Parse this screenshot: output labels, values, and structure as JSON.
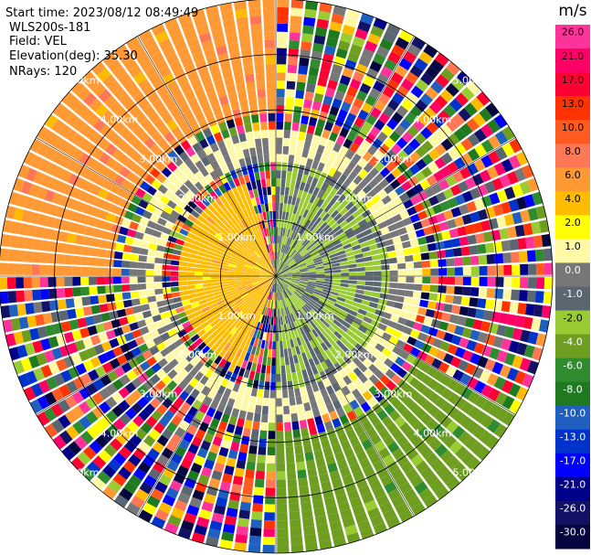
{
  "header": {
    "start_time": "Start time: 2023/08/12 08:49:49",
    "site": "WLS200s-181",
    "field": "Field: VEL",
    "elevation": "Elevation(deg): 35.30",
    "nrays": "NRays: 120"
  },
  "range_rings": {
    "labels": [
      "1.00km",
      "2.00km",
      "3.00km",
      "4.00km",
      "5.00km"
    ],
    "values_km": [
      1,
      2,
      3,
      4,
      5
    ]
  },
  "colorbar": {
    "unit": "m/s",
    "ticks": [
      "26.0",
      "21.0",
      "17.0",
      "13.0",
      "10.0",
      "8.0",
      "6.0",
      "4.0",
      "2.0",
      "1.0",
      "0.0",
      "-1.0",
      "-2.0",
      "-4.0",
      "-6.0",
      "-8.0",
      "-10.0",
      "-13.0",
      "-17.0",
      "-21.0",
      "-26.0",
      "-30.0"
    ],
    "colors": [
      "#ff3399",
      "#ff0066",
      "#ff0033",
      "#ff3300",
      "#ff5a1f",
      "#ff7755",
      "#ff9933",
      "#ffbb00",
      "#ffff00",
      "#fff9a6",
      "#777777",
      "#5a6670",
      "#99cc33",
      "#6e9e20",
      "#2e8b2e",
      "#1f7a1f",
      "#1f5fc0",
      "#0033cc",
      "#0000ff",
      "#00008b",
      "#111166",
      "#050540"
    ]
  },
  "chart_data": {
    "type": "ppi",
    "field": "VEL",
    "unit": "m/s",
    "elevation_deg": 35.3,
    "nrays": 120,
    "range_max_km": 5,
    "range_rings_km": [
      1,
      2,
      3,
      4,
      5
    ],
    "scale_min": -30.0,
    "scale_max": 26.0,
    "velocity_by_region": [
      {
        "azimuth_deg": [
          200,
          340
        ],
        "range_km": [
          0,
          1.8
        ],
        "velocity_ms": 3
      },
      {
        "azimuth_deg": [
          0,
          180
        ],
        "range_km": [
          0,
          2.0
        ],
        "velocity_ms": -2
      },
      {
        "azimuth_deg": [
          60,
          120
        ],
        "range_km": [
          0,
          1.0
        ],
        "velocity_ms": -5
      },
      {
        "azimuth_deg": [
          0,
          360
        ],
        "range_km": [
          2.0,
          2.7
        ],
        "velocity_ms": 0
      },
      {
        "azimuth_deg": [
          270,
          360
        ],
        "range_km": [
          3.0,
          5.0
        ],
        "velocity_ms": 5
      },
      {
        "azimuth_deg": [
          120,
          180
        ],
        "range_km": [
          3.0,
          5.0
        ],
        "velocity_ms": -5
      },
      {
        "azimuth_deg": [
          0,
          360
        ],
        "range_km": [
          2.7,
          5.0
        ],
        "velocity_ms": "noisy"
      }
    ]
  }
}
